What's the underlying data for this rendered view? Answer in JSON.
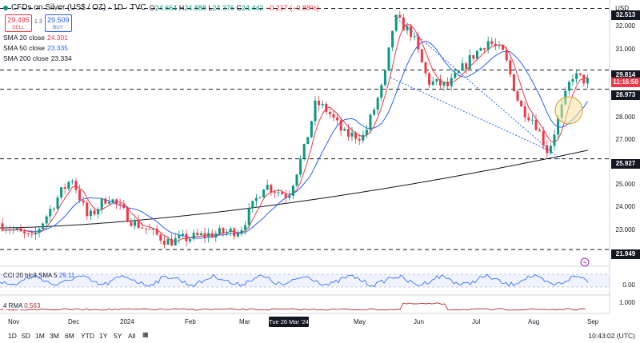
{
  "header": {
    "symbol_title": "CFDs on Silver (US$ / OZ) · 1D · TVC",
    "ohlc": [
      {
        "label": "O",
        "value": "24.664"
      },
      {
        "label": "H",
        "value": "24.888"
      },
      {
        "label": "L",
        "value": "24.376"
      },
      {
        "label": "C",
        "value": "24.442"
      }
    ],
    "change": "−0.217 (−0.88%)",
    "currency": "USD"
  },
  "trade": {
    "sell_price": "29.495",
    "sell_label": "SELL",
    "spread": "1.3",
    "buy_price": "29.509",
    "buy_label": "BUY"
  },
  "moving_averages": [
    {
      "label": "SMA 20 close",
      "value": "24.301",
      "color": "#f23645"
    },
    {
      "label": "SMA 50 close",
      "value": "23.335",
      "color": "#2962ff"
    },
    {
      "label": "SMA 200 close",
      "value": "23.334",
      "color": "#131722"
    }
  ],
  "price_axis": {
    "ticks": [
      "32.000",
      "31.000",
      "28.000",
      "27.000",
      "25.000",
      "24.000",
      "23.000",
      "22.000"
    ],
    "tags": [
      {
        "text": "32.513",
        "style": "dark"
      },
      {
        "text": "29.814",
        "style": "dark"
      },
      {
        "text": "11:16:58",
        "style": "red"
      },
      {
        "text": "28.973",
        "style": "dark"
      },
      {
        "text": "25.927",
        "style": "dark"
      },
      {
        "text": "21.949",
        "style": "dark"
      }
    ]
  },
  "time_axis": {
    "labels": [
      "Nov",
      "Dec",
      "2024",
      "Feb",
      "Mar",
      "May",
      "Jun",
      "Jul",
      "Aug",
      "Sep"
    ],
    "highlight": "Tue 26 Mar '24"
  },
  "indicators": {
    "cci_label": "CCI 20 hlc3 SMA 5",
    "cci_value": "29.11",
    "cci_ticks": [
      "0.00"
    ],
    "rma_label": "4 RMA",
    "rma_value": "0.563",
    "rma_ticks": [
      "1.000"
    ]
  },
  "timeframes": [
    "1D",
    "5D",
    "1M",
    "3M",
    "6M",
    "YTD",
    "1Y",
    "5Y",
    "All"
  ],
  "clock": "10:43:02 (UTC)",
  "colors": {
    "up": "#089981",
    "down": "#f23645",
    "sma20": "#f23645",
    "sma50": "#2962ff",
    "sma200": "#131722",
    "cci": "#2962ff"
  },
  "chart_data": {
    "type": "candlestick",
    "title": "CFDs on Silver (US$ / OZ)",
    "horizontal_levels": [
      32.513,
      29.814,
      28.973,
      25.927,
      21.949
    ],
    "ylim": [
      21.5,
      32.6
    ],
    "trendline_note": "descending wedge",
    "sma200_start": 22.9,
    "sma200_end": 26.3
  }
}
